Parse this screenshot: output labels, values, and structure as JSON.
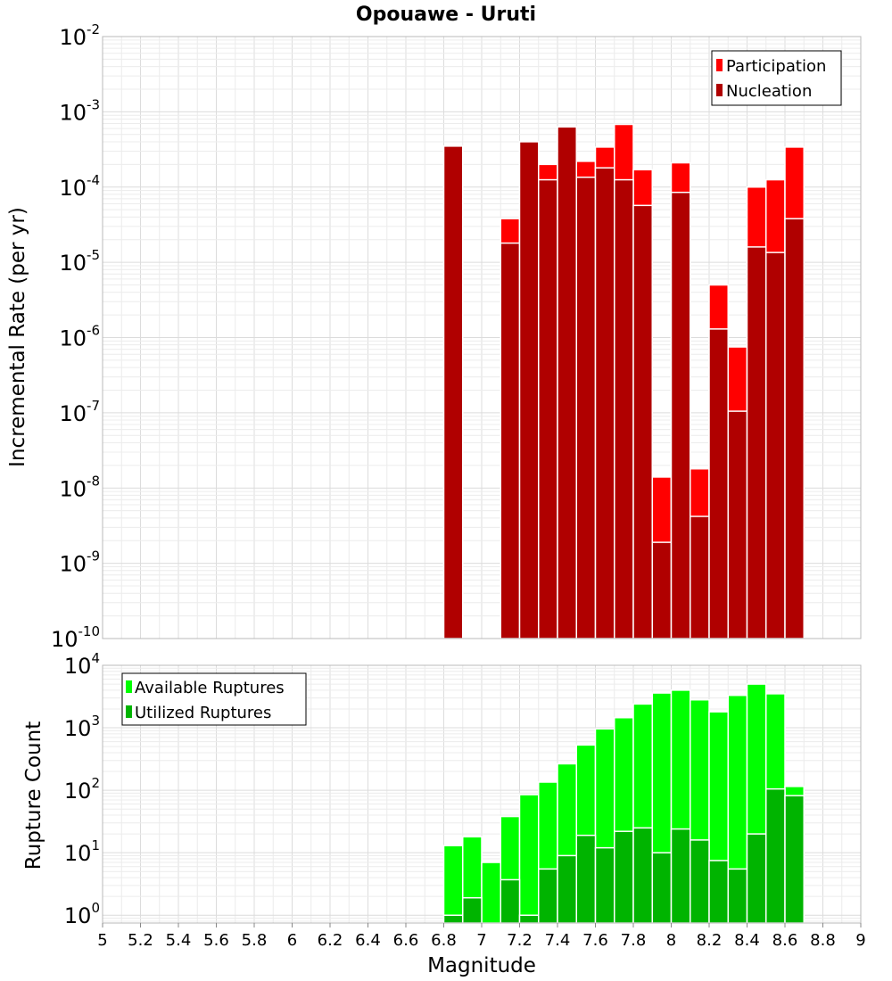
{
  "title": "Opouawe - Uruti",
  "colors": {
    "participation": "#ff0000",
    "nucleation": "#b00000",
    "available": "#00ff00",
    "utilized": "#00b400"
  },
  "chart_data": [
    {
      "type": "bar",
      "title": "Opouawe - Uruti",
      "xlabel": "Magnitude",
      "ylabel": "Incremental Rate (per yr)",
      "y_scale": "log",
      "ylim": [
        1e-10,
        0.01
      ],
      "xlim": [
        5,
        9
      ],
      "grid": true,
      "legend_position": "top-right",
      "x": [
        6.85,
        7.15,
        7.25,
        7.35,
        7.45,
        7.55,
        7.65,
        7.75,
        7.85,
        7.95,
        8.05,
        8.15,
        8.25,
        8.35,
        8.45,
        8.55,
        8.65
      ],
      "series": [
        {
          "name": "Participation",
          "color": "#ff0000",
          "values": [
            0.00035,
            3.8e-05,
            0.0004,
            0.0002,
            0.00063,
            0.00022,
            0.00034,
            0.00068,
            0.00017,
            1.4e-08,
            0.00021,
            1.8e-08,
            5e-06,
            7.5e-07,
            0.0001,
            0.000125,
            0.00034
          ]
        },
        {
          "name": "Nucleation",
          "color": "#b00000",
          "values": [
            0.00035,
            1.8e-05,
            0.0004,
            0.000125,
            0.00063,
            0.000135,
            0.00018,
            0.000125,
            5.7e-05,
            1.9e-09,
            8.5e-05,
            4.2e-09,
            1.3e-06,
            1.05e-07,
            1.6e-05,
            1.35e-05,
            3.8e-05
          ]
        }
      ]
    },
    {
      "type": "bar",
      "xlabel": "Magnitude",
      "ylabel": "Rupture Count",
      "y_scale": "log",
      "ylim": [
        0.75,
        10000
      ],
      "xlim": [
        5,
        9
      ],
      "grid": true,
      "legend_position": "top-left",
      "x": [
        6.85,
        6.95,
        7.05,
        7.15,
        7.25,
        7.35,
        7.45,
        7.55,
        7.65,
        7.75,
        7.85,
        7.95,
        8.05,
        8.15,
        8.25,
        8.35,
        8.45,
        8.55,
        8.65
      ],
      "series": [
        {
          "name": "Available Ruptures",
          "color": "#00ff00",
          "values": [
            13,
            18,
            7,
            38,
            85,
            135,
            265,
            530,
            960,
            1450,
            2400,
            3600,
            4000,
            2800,
            1800,
            3300,
            5000,
            3500,
            115
          ]
        },
        {
          "name": "Utilized Ruptures",
          "color": "#00b400",
          "values": [
            1,
            1.9,
            0,
            3.7,
            1,
            5.5,
            9,
            19,
            12,
            22,
            25,
            10,
            24,
            16,
            7.5,
            5.5,
            20,
            105,
            82
          ]
        }
      ]
    }
  ],
  "x_ticks": [
    "5",
    "5.2",
    "5.4",
    "5.6",
    "5.8",
    "6",
    "6.2",
    "6.4",
    "6.6",
    "6.8",
    "7",
    "7.2",
    "7.4",
    "7.6",
    "7.8",
    "8",
    "8.2",
    "8.4",
    "8.6",
    "8.8",
    "9"
  ],
  "top_y_ticks": [
    {
      "base": "10",
      "exp": "-10",
      "value": 1e-10
    },
    {
      "base": "10",
      "exp": "-9",
      "value": 1e-09
    },
    {
      "base": "10",
      "exp": "-8",
      "value": 1e-08
    },
    {
      "base": "10",
      "exp": "-7",
      "value": 1e-07
    },
    {
      "base": "10",
      "exp": "-6",
      "value": 1e-06
    },
    {
      "base": "10",
      "exp": "-5",
      "value": 1e-05
    },
    {
      "base": "10",
      "exp": "-4",
      "value": 0.0001
    },
    {
      "base": "10",
      "exp": "-3",
      "value": 0.001
    },
    {
      "base": "10",
      "exp": "-2",
      "value": 0.01
    }
  ],
  "bottom_y_ticks": [
    {
      "base": "10",
      "exp": "0",
      "value": 1
    },
    {
      "base": "10",
      "exp": "1",
      "value": 10
    },
    {
      "base": "10",
      "exp": "2",
      "value": 100
    },
    {
      "base": "10",
      "exp": "3",
      "value": 1000
    },
    {
      "base": "10",
      "exp": "4",
      "value": 10000
    }
  ]
}
